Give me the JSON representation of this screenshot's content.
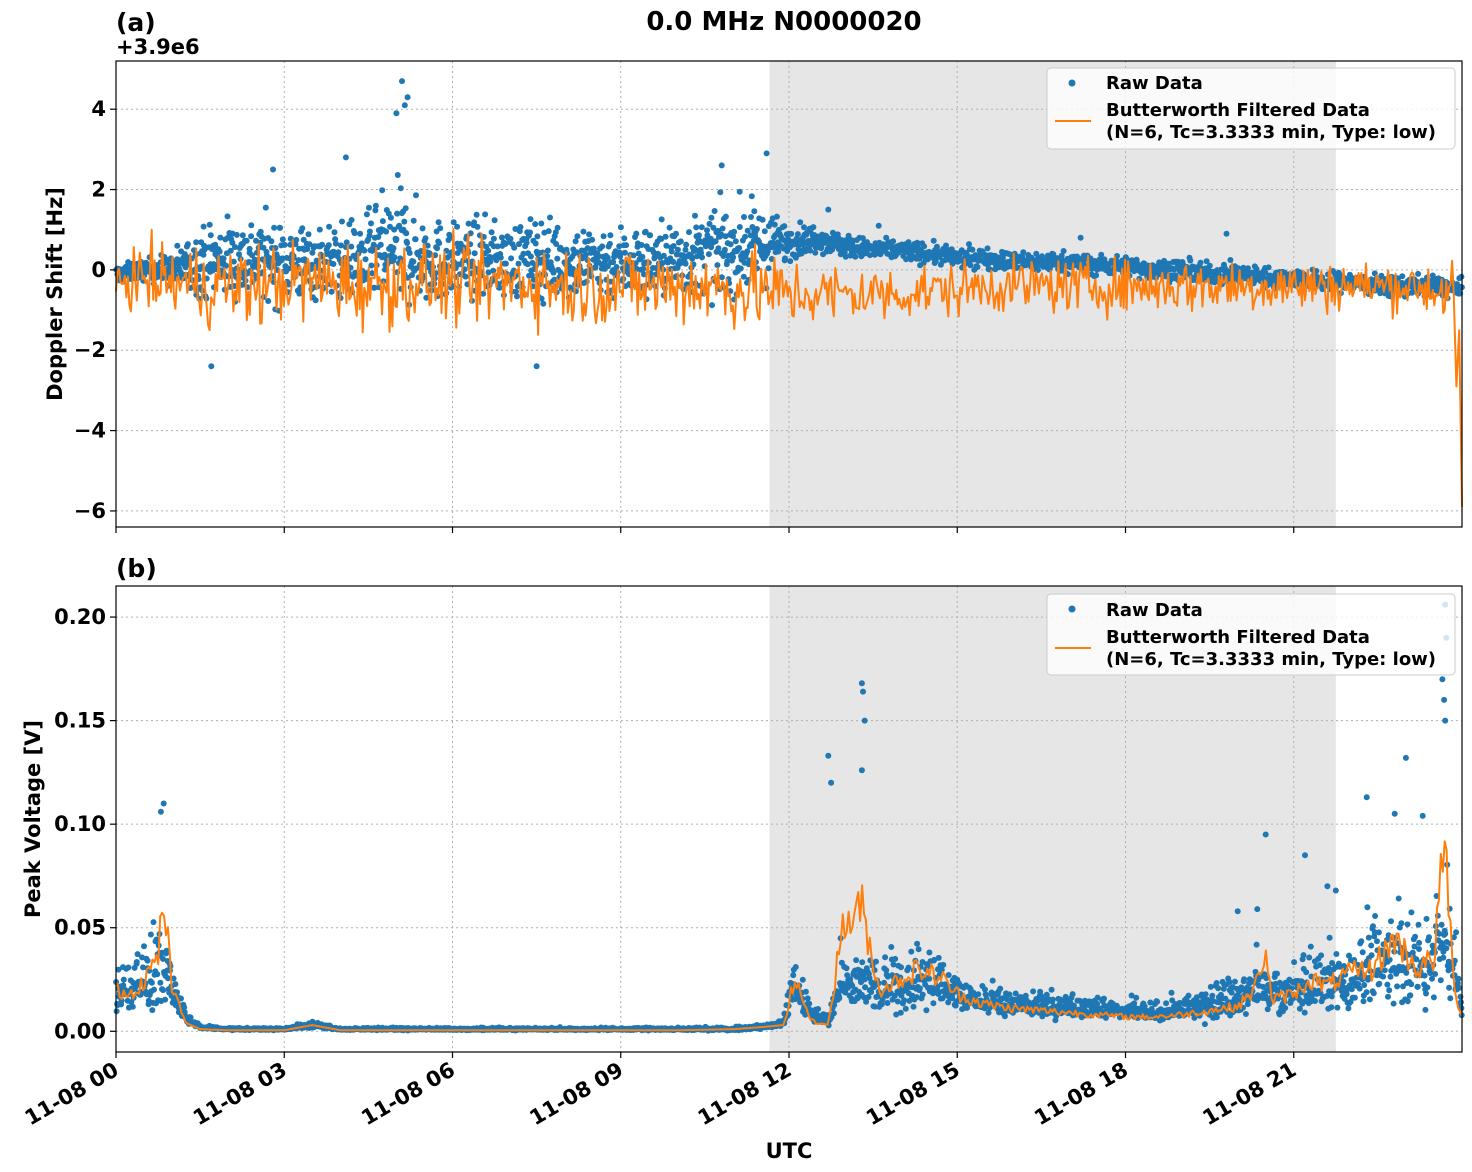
{
  "figure": {
    "title": "0.0 MHz N0000020",
    "xlabel": "UTC",
    "x_tick_labels": [
      "11-08 00",
      "11-08 03",
      "11-08 06",
      "11-08 09",
      "11-08 12",
      "11-08 15",
      "11-08 18",
      "11-08 21"
    ],
    "shaded_region_hours": [
      11.65,
      21.75
    ]
  },
  "colors": {
    "raw": "#1f77b4",
    "filtered": "#ff7f0e",
    "shade": "#e6e6e6",
    "grid": "#b0b0b0"
  },
  "chart_data": [
    {
      "type": "scatter",
      "panel_label": "(a)",
      "offset_text": "+3.9e6",
      "ylabel": "Doppler Shift [Hz]",
      "xlim_hours": [
        0,
        24
      ],
      "ylim": [
        -6.4,
        5.2
      ],
      "y_ticks": [
        4,
        2,
        0,
        -2,
        -4,
        -6
      ],
      "y_tick_labels": [
        "4",
        "2",
        "0",
        "−2",
        "−4",
        "−6"
      ],
      "grid": true,
      "legend_position": "upper right",
      "series": [
        {
          "name": "Raw Data",
          "style": "points",
          "x_hours": [
            0,
            0.5,
            1,
            1.5,
            2,
            2.5,
            3,
            3.5,
            4,
            4.5,
            5,
            5.5,
            6,
            6.5,
            7,
            7.5,
            8,
            8.5,
            9,
            9.5,
            10,
            10.5,
            11,
            11.5,
            12,
            12.5,
            13,
            13.5,
            14,
            14.5,
            15,
            15.5,
            16,
            16.5,
            17,
            17.5,
            18,
            18.5,
            19,
            19.5,
            20,
            20.5,
            21,
            21.5,
            22,
            22.5,
            23,
            23.5,
            24
          ],
          "y_center": [
            -0.1,
            0,
            0,
            0.2,
            0.3,
            0.3,
            0.2,
            0.2,
            0.2,
            0.3,
            0.6,
            0.3,
            0.2,
            0.3,
            0.2,
            0.3,
            0.2,
            0.2,
            0.2,
            0.2,
            0.3,
            0.4,
            0.5,
            0.6,
            0.7,
            0.8,
            0.6,
            0.5,
            0.5,
            0.4,
            0.3,
            0.3,
            0.2,
            0.2,
            0.2,
            0.1,
            0.1,
            0.0,
            0.0,
            -0.1,
            -0.1,
            -0.2,
            -0.2,
            -0.3,
            -0.3,
            -0.4,
            -0.4,
            -0.4,
            -0.5
          ],
          "y_halfwidth": [
            0.25,
            0.3,
            0.5,
            1.0,
            1.2,
            1.2,
            1.2,
            1.1,
            1.1,
            1.3,
            1.8,
            1.3,
            1.1,
            1.1,
            1.1,
            1.2,
            1.1,
            1.1,
            1.1,
            1.1,
            1.1,
            1.2,
            1.3,
            1.2,
            0.5,
            0.4,
            0.35,
            0.3,
            0.3,
            0.3,
            0.3,
            0.3,
            0.3,
            0.3,
            0.3,
            0.3,
            0.3,
            0.3,
            0.3,
            0.3,
            0.3,
            0.3,
            0.3,
            0.3,
            0.3,
            0.3,
            0.3,
            0.3,
            0.3
          ],
          "outliers": [
            [
              5.1,
              4.7
            ],
            [
              5.2,
              4.3
            ],
            [
              5.0,
              3.9
            ],
            [
              5.15,
              4.1
            ],
            [
              2.8,
              2.5
            ],
            [
              4.1,
              2.8
            ],
            [
              11.6,
              2.9
            ],
            [
              10.8,
              2.6
            ],
            [
              1.7,
              -2.4
            ],
            [
              7.5,
              -2.4
            ],
            [
              12.7,
              1.5
            ],
            [
              13.6,
              1.1
            ],
            [
              19.8,
              0.9
            ],
            [
              17.2,
              0.8
            ]
          ]
        },
        {
          "name": "Butterworth Filtered Data\n(N=6, Tc=3.3333 min, Type: low)",
          "style": "line",
          "x_hours": [
            0,
            0.5,
            1,
            1.5,
            2,
            2.5,
            3,
            3.5,
            4,
            4.5,
            5,
            5.5,
            6,
            6.5,
            7,
            7.5,
            8,
            8.5,
            9,
            9.5,
            10,
            10.5,
            11,
            11.5,
            12,
            12.5,
            13,
            13.5,
            14,
            14.5,
            15,
            15.5,
            16,
            16.5,
            17,
            17.5,
            18,
            18.5,
            19,
            19.5,
            20,
            20.5,
            21,
            21.5,
            22,
            22.5,
            23,
            23.5,
            24
          ],
          "y_center": [
            -0.3,
            -0.2,
            -0.3,
            -0.4,
            -0.4,
            -0.4,
            -0.3,
            -0.3,
            -0.3,
            -0.4,
            -0.3,
            -0.3,
            -0.3,
            -0.4,
            -0.3,
            -0.3,
            -0.4,
            -0.4,
            -0.4,
            -0.4,
            -0.4,
            -0.4,
            -0.5,
            -0.5,
            -0.6,
            -0.6,
            -0.6,
            -0.6,
            -0.6,
            -0.5,
            -0.5,
            -0.4,
            -0.4,
            -0.4,
            -0.4,
            -0.4,
            -0.4,
            -0.4,
            -0.4,
            -0.4,
            -0.4,
            -0.4,
            -0.4,
            -0.4,
            -0.4,
            -0.4,
            -0.4,
            -0.5,
            -0.6
          ],
          "y_halfwidth": [
            0.9,
            1.2,
            1.4,
            1.5,
            1.6,
            1.6,
            1.5,
            1.5,
            1.6,
            1.6,
            1.6,
            1.5,
            1.5,
            1.5,
            1.5,
            1.5,
            1.5,
            1.5,
            1.5,
            1.5,
            1.5,
            1.5,
            1.5,
            1.5,
            1.3,
            1.2,
            1.1,
            1.1,
            1.0,
            1.0,
            1.0,
            1.0,
            1.0,
            1.0,
            1.0,
            1.0,
            1.0,
            1.0,
            1.0,
            1.0,
            1.0,
            1.0,
            1.0,
            1.0,
            0.9,
            0.9,
            0.9,
            1.0,
            1.1
          ],
          "end_drop": [
            [
              23.85,
              -0.5
            ],
            [
              23.9,
              -2.9
            ],
            [
              23.95,
              -1.5
            ],
            [
              24.0,
              -5.9
            ]
          ]
        }
      ]
    },
    {
      "type": "scatter",
      "panel_label": "(b)",
      "ylabel": "Peak Voltage [V]",
      "xlim_hours": [
        0,
        24
      ],
      "ylim": [
        -0.01,
        0.215
      ],
      "y_ticks": [
        0.0,
        0.05,
        0.1,
        0.15,
        0.2
      ],
      "y_tick_labels": [
        "0.00",
        "0.05",
        "0.10",
        "0.15",
        "0.20"
      ],
      "grid": true,
      "legend_position": "upper right",
      "series": [
        {
          "name": "Raw Data",
          "style": "points",
          "x_hours": [
            0,
            0.25,
            0.5,
            0.75,
            1.0,
            1.25,
            1.5,
            2,
            3,
            3.5,
            4,
            5,
            6,
            7,
            8,
            9,
            10,
            11,
            11.5,
            11.9,
            12.1,
            12.4,
            12.7,
            12.95,
            13.3,
            13.6,
            14,
            14.3,
            14.7,
            15,
            15.5,
            16,
            16.5,
            17,
            17.5,
            18,
            18.5,
            19,
            19.5,
            20,
            20.3,
            20.6,
            21,
            21.3,
            21.6,
            22,
            22.4,
            22.8,
            23.2,
            23.5,
            23.7,
            24
          ],
          "y_center": [
            0.018,
            0.02,
            0.022,
            0.03,
            0.02,
            0.006,
            0.002,
            0.001,
            0.001,
            0.003,
            0.001,
            0.001,
            0.001,
            0.001,
            0.001,
            0.001,
            0.001,
            0.001,
            0.002,
            0.004,
            0.02,
            0.008,
            0.005,
            0.025,
            0.022,
            0.02,
            0.022,
            0.024,
            0.022,
            0.017,
            0.014,
            0.012,
            0.012,
            0.011,
            0.01,
            0.009,
            0.009,
            0.01,
            0.012,
            0.014,
            0.02,
            0.016,
            0.018,
            0.02,
            0.022,
            0.025,
            0.028,
            0.03,
            0.03,
            0.03,
            0.05,
            0.01
          ],
          "y_halfwidth": [
            0.012,
            0.014,
            0.02,
            0.03,
            0.012,
            0.004,
            0.001,
            0.0008,
            0.0008,
            0.002,
            0.0008,
            0.0008,
            0.0008,
            0.0008,
            0.0008,
            0.0008,
            0.0008,
            0.001,
            0.0015,
            0.002,
            0.018,
            0.005,
            0.004,
            0.02,
            0.02,
            0.018,
            0.02,
            0.022,
            0.015,
            0.01,
            0.009,
            0.008,
            0.008,
            0.007,
            0.007,
            0.006,
            0.006,
            0.007,
            0.01,
            0.014,
            0.018,
            0.013,
            0.016,
            0.02,
            0.022,
            0.025,
            0.028,
            0.03,
            0.028,
            0.03,
            0.05,
            0.008
          ],
          "outliers": [
            [
              0.85,
              0.11
            ],
            [
              0.8,
              0.106
            ],
            [
              12.7,
              0.133
            ],
            [
              12.75,
              0.12
            ],
            [
              13.3,
              0.168
            ],
            [
              13.32,
              0.164
            ],
            [
              13.35,
              0.15
            ],
            [
              13.3,
              0.126
            ],
            [
              20.0,
              0.058
            ],
            [
              20.35,
              0.059
            ],
            [
              20.5,
              0.095
            ],
            [
              21.2,
              0.085
            ],
            [
              21.6,
              0.07
            ],
            [
              21.75,
              0.068
            ],
            [
              22.3,
              0.113
            ],
            [
              22.8,
              0.105
            ],
            [
              23.0,
              0.132
            ],
            [
              23.3,
              0.104
            ],
            [
              23.7,
              0.206
            ],
            [
              23.72,
              0.19
            ],
            [
              23.65,
              0.17
            ],
            [
              23.68,
              0.16
            ],
            [
              23.7,
              0.15
            ]
          ]
        },
        {
          "name": "Butterworth Filtered Data\n(N=6, Tc=3.3333 min, Type: low)",
          "style": "line",
          "x_hours": [
            0,
            0.25,
            0.5,
            0.75,
            0.85,
            1.0,
            1.25,
            1.5,
            2,
            3,
            3.5,
            4,
            5,
            6,
            7,
            8,
            9,
            10,
            11,
            11.5,
            11.9,
            12.1,
            12.4,
            12.7,
            12.95,
            13.3,
            13.6,
            14,
            14.3,
            14.7,
            15,
            15.5,
            16,
            16.5,
            17,
            17.5,
            18,
            18.5,
            19,
            19.5,
            20,
            20.3,
            20.5,
            20.6,
            21,
            21.3,
            21.6,
            22,
            22.4,
            22.8,
            23.2,
            23.5,
            23.7,
            23.85,
            24
          ],
          "y": [
            0.02,
            0.018,
            0.025,
            0.035,
            0.066,
            0.02,
            0.004,
            0.001,
            0.0005,
            0.0005,
            0.003,
            0.0005,
            0.0005,
            0.0005,
            0.0005,
            0.0005,
            0.0005,
            0.0005,
            0.001,
            0.002,
            0.003,
            0.025,
            0.005,
            0.003,
            0.05,
            0.06,
            0.02,
            0.025,
            0.03,
            0.026,
            0.018,
            0.013,
            0.011,
            0.01,
            0.009,
            0.008,
            0.007,
            0.007,
            0.008,
            0.01,
            0.012,
            0.02,
            0.04,
            0.015,
            0.018,
            0.025,
            0.022,
            0.028,
            0.03,
            0.045,
            0.03,
            0.035,
            0.095,
            0.02,
            0.008
          ]
        }
      ]
    }
  ]
}
